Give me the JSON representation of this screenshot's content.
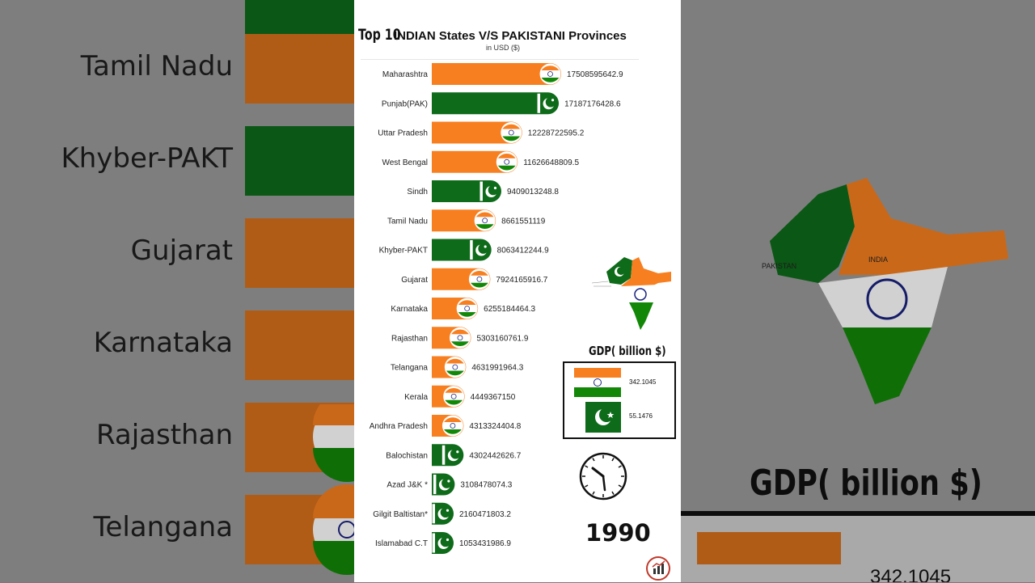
{
  "colors": {
    "india": "#f77f1f",
    "pakistan": "#0e6b1a",
    "background": "#ffffff",
    "text": "#222222"
  },
  "header": {
    "top_label": "Top 10",
    "title": "INDIAN States V/S PAKISTANI Provinces",
    "subtitle": "in USD ($)"
  },
  "chart_data": {
    "type": "bar",
    "orientation": "horizontal",
    "title": "INDIAN States V/S PAKISTANI Provinces",
    "subtitle": "in USD ($)",
    "categories": [
      "Maharashtra",
      "Punjab(PAK)",
      "Uttar Pradesh",
      "West Bengal",
      "Sindh",
      "Tamil Nadu",
      "Khyber-PAKT",
      "Gujarat",
      "Karnataka",
      "Rajasthan",
      "Telangana",
      "Kerala",
      "Andhra Pradesh",
      "Balochistan",
      "Azad J&K *",
      "Gilgit Baltistan*",
      "Islamabad C.T"
    ],
    "values": [
      17508595642.9,
      17187176428.6,
      12228722595.2,
      11626648809.5,
      9409013248.8,
      8661551119,
      8063412244.9,
      7924165916.7,
      6255184464.3,
      5303160761.9,
      4631991964.3,
      4449367150,
      4313324404.8,
      4302442626.7,
      3108478074.3,
      2160471803.2,
      1053431986.9
    ],
    "value_labels": [
      "17508595642.9",
      "17187176428.6",
      "12228722595.2",
      "11626648809.5",
      "9409013248.8",
      "8661551119",
      "8063412244.9",
      "7924165916.7",
      "6255184464.3",
      "5303160761.9",
      "4631991964.3",
      "4449367150",
      "4313324404.8",
      "4302442626.7",
      "3108478074.3",
      "2160471803.2",
      "1053431986.9"
    ],
    "country": [
      "india",
      "pakistan",
      "india",
      "india",
      "pakistan",
      "india",
      "pakistan",
      "india",
      "india",
      "india",
      "india",
      "india",
      "india",
      "pakistan",
      "pakistan",
      "pakistan",
      "pakistan"
    ],
    "grid": false,
    "legend": "none"
  },
  "gdp": {
    "title": "GDP( billion $)",
    "india_value": "342.1045",
    "pakistan_value": "55.1476"
  },
  "year": "1990",
  "background_labels": [
    "Tamil Nadu",
    "Khyber-PAKT",
    "Gujarat",
    "Karnataka",
    "Rajasthan",
    "Telangana"
  ],
  "background_title": "GDP( billion $)",
  "background_value": "342.1045",
  "map_labels": {
    "pakistan": "PAKISTAN",
    "india": "INDIA"
  }
}
